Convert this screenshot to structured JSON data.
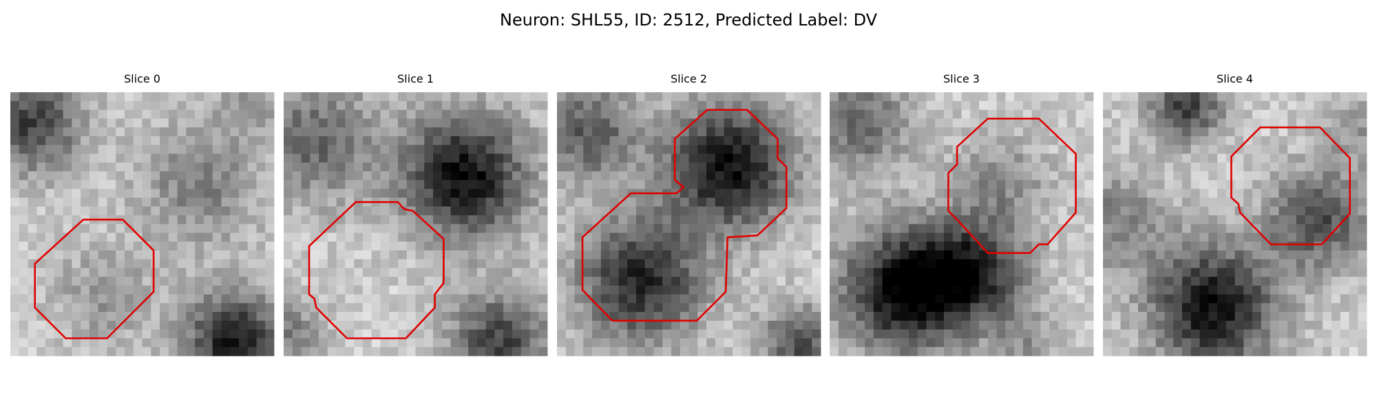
{
  "title": "Neuron: SHL55, ID: 2512, Predicted Label: DV",
  "panels": [
    {
      "title": "Slice 0"
    },
    {
      "title": "Slice 1"
    },
    {
      "title": "Slice 2"
    },
    {
      "title": "Slice 3"
    },
    {
      "title": "Slice 4"
    }
  ]
}
